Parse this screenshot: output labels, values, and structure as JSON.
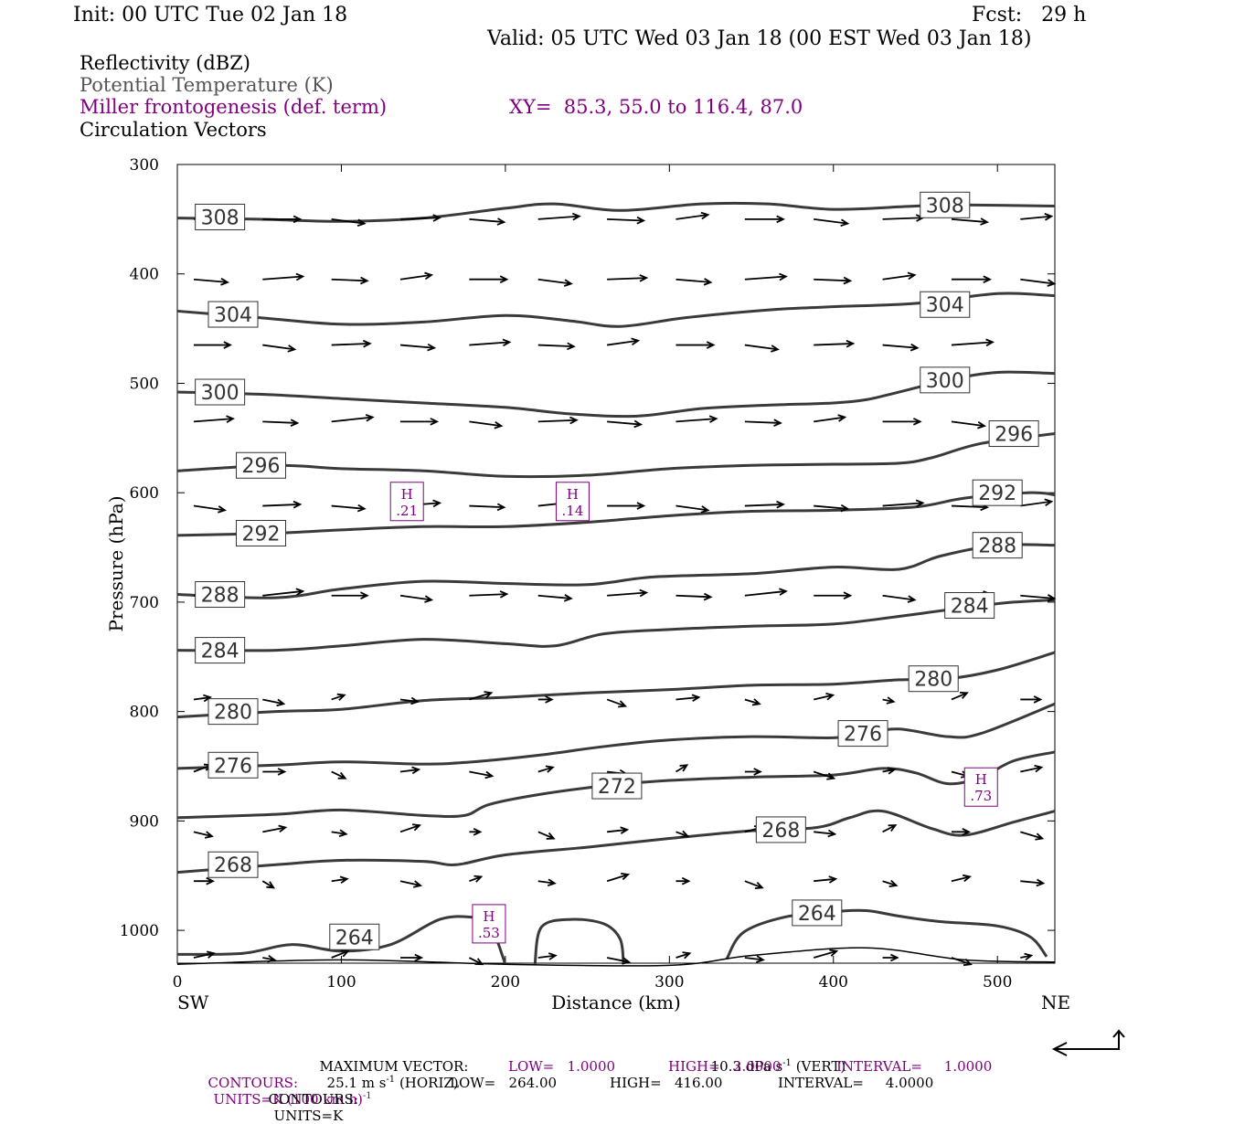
{
  "header": {
    "init": "Init: 00 UTC Tue 02 Jan 18",
    "fcst": "Fcst:   29 h",
    "valid": "Valid: 05 UTC Wed 03 Jan 18 (00 EST Wed 03 Jan 18)"
  },
  "legend": {
    "reflectivity": "Reflectivity (dBZ)",
    "theta": "Potential Temperature (K)",
    "miller": "Miller frontogenesis (def. term)",
    "xy": "XY=  85.3, 55.0 to 116.4, 87.0",
    "vectors": "Circulation Vectors"
  },
  "colors": {
    "theta": "#3a3a3a",
    "fronto": "#800080",
    "vectors": "#000000"
  },
  "chart_data": {
    "type": "line",
    "xlabel": "Distance (km)",
    "ylabel": "Pressure (hPa)",
    "xlim": [
      0,
      535
    ],
    "ylim": [
      300,
      1030
    ],
    "y_inverted": true,
    "x_ticks": [
      0,
      100,
      200,
      300,
      400,
      500
    ],
    "y_ticks": [
      300,
      400,
      500,
      600,
      700,
      800,
      900,
      1000
    ],
    "x_end_labels": {
      "left": "SW",
      "right": "NE"
    },
    "theta_contours": [
      {
        "name": "308",
        "points": [
          [
            0,
            349
          ],
          [
            50,
            350
          ],
          [
            100,
            352
          ],
          [
            150,
            349
          ],
          [
            200,
            340
          ],
          [
            230,
            336
          ],
          [
            270,
            342
          ],
          [
            320,
            336
          ],
          [
            360,
            336
          ],
          [
            400,
            341
          ],
          [
            450,
            338
          ],
          [
            480,
            337
          ],
          [
            535,
            338
          ]
        ],
        "labels": [
          [
            26,
            348
          ],
          [
            468,
            337
          ]
        ]
      },
      {
        "name": "304",
        "points": [
          [
            0,
            434
          ],
          [
            50,
            440
          ],
          [
            100,
            446
          ],
          [
            150,
            444
          ],
          [
            200,
            438
          ],
          [
            240,
            443
          ],
          [
            270,
            448
          ],
          [
            310,
            440
          ],
          [
            360,
            433
          ],
          [
            400,
            430
          ],
          [
            450,
            427
          ],
          [
            500,
            418
          ],
          [
            535,
            420
          ]
        ],
        "labels": [
          [
            34,
            437
          ],
          [
            468,
            428
          ]
        ]
      },
      {
        "name": "300",
        "points": [
          [
            0,
            508
          ],
          [
            50,
            510
          ],
          [
            100,
            514
          ],
          [
            150,
            518
          ],
          [
            200,
            522
          ],
          [
            240,
            528
          ],
          [
            280,
            530
          ],
          [
            320,
            523
          ],
          [
            360,
            520
          ],
          [
            400,
            518
          ],
          [
            420,
            515
          ],
          [
            440,
            508
          ],
          [
            470,
            497
          ],
          [
            500,
            490
          ],
          [
            535,
            491
          ]
        ],
        "labels": [
          [
            26,
            508
          ],
          [
            468,
            497
          ]
        ]
      },
      {
        "name": "296",
        "points": [
          [
            0,
            580
          ],
          [
            60,
            575
          ],
          [
            100,
            578
          ],
          [
            150,
            580
          ],
          [
            200,
            585
          ],
          [
            250,
            584
          ],
          [
            300,
            578
          ],
          [
            350,
            575
          ],
          [
            400,
            574
          ],
          [
            440,
            573
          ],
          [
            460,
            568
          ],
          [
            490,
            555
          ],
          [
            535,
            546
          ]
        ],
        "labels": [
          [
            51,
            575
          ],
          [
            510,
            546
          ]
        ]
      },
      {
        "name": "292",
        "points": [
          [
            0,
            639
          ],
          [
            60,
            637
          ],
          [
            100,
            634
          ],
          [
            150,
            631
          ],
          [
            200,
            631
          ],
          [
            250,
            627
          ],
          [
            300,
            621
          ],
          [
            350,
            617
          ],
          [
            400,
            616
          ],
          [
            450,
            613
          ],
          [
            480,
            605
          ],
          [
            520,
            600
          ],
          [
            535,
            602
          ]
        ],
        "labels": [
          [
            51,
            637
          ],
          [
            500,
            600
          ]
        ]
      },
      {
        "name": "288",
        "points": [
          [
            0,
            693
          ],
          [
            60,
            696
          ],
          [
            100,
            688
          ],
          [
            150,
            681
          ],
          [
            200,
            683
          ],
          [
            250,
            684
          ],
          [
            290,
            677
          ],
          [
            350,
            674
          ],
          [
            400,
            668
          ],
          [
            440,
            670
          ],
          [
            465,
            658
          ],
          [
            500,
            648
          ],
          [
            535,
            648
          ]
        ],
        "labels": [
          [
            26,
            693
          ],
          [
            500,
            648
          ]
        ]
      },
      {
        "name": "284",
        "points": [
          [
            0,
            744
          ],
          [
            60,
            744
          ],
          [
            100,
            740
          ],
          [
            150,
            734
          ],
          [
            200,
            738
          ],
          [
            230,
            740
          ],
          [
            260,
            729
          ],
          [
            300,
            725
          ],
          [
            350,
            722
          ],
          [
            400,
            720
          ],
          [
            440,
            713
          ],
          [
            480,
            705
          ],
          [
            510,
            700
          ],
          [
            535,
            698
          ]
        ],
        "labels": [
          [
            26,
            744
          ],
          [
            483,
            703
          ]
        ]
      },
      {
        "name": "280",
        "points": [
          [
            0,
            805
          ],
          [
            60,
            800
          ],
          [
            100,
            798
          ],
          [
            150,
            790
          ],
          [
            200,
            787
          ],
          [
            250,
            783
          ],
          [
            300,
            780
          ],
          [
            350,
            776
          ],
          [
            400,
            775
          ],
          [
            440,
            771
          ],
          [
            470,
            770
          ],
          [
            500,
            762
          ],
          [
            535,
            746
          ]
        ],
        "labels": [
          [
            34,
            800
          ],
          [
            461,
            770
          ]
        ]
      },
      {
        "name": "276",
        "points": [
          [
            0,
            852
          ],
          [
            60,
            849
          ],
          [
            100,
            846
          ],
          [
            150,
            848
          ],
          [
            180,
            846
          ],
          [
            220,
            840
          ],
          [
            260,
            832
          ],
          [
            300,
            826
          ],
          [
            350,
            823
          ],
          [
            400,
            824
          ],
          [
            420,
            820
          ],
          [
            440,
            816
          ],
          [
            470,
            823
          ],
          [
            490,
            820
          ],
          [
            535,
            793
          ]
        ],
        "labels": [
          [
            34,
            849
          ],
          [
            418,
            820
          ]
        ]
      },
      {
        "name": "272",
        "points": [
          [
            0,
            897
          ],
          [
            60,
            894
          ],
          [
            100,
            890
          ],
          [
            150,
            895
          ],
          [
            175,
            895
          ],
          [
            190,
            885
          ],
          [
            220,
            876
          ],
          [
            260,
            868
          ],
          [
            300,
            863
          ],
          [
            350,
            860
          ],
          [
            400,
            858
          ],
          [
            430,
            852
          ],
          [
            450,
            856
          ],
          [
            470,
            866
          ],
          [
            490,
            860
          ],
          [
            510,
            845
          ],
          [
            535,
            837
          ]
        ],
        "labels": [
          [
            268,
            868
          ]
        ]
      },
      {
        "name": "268",
        "points": [
          [
            0,
            947
          ],
          [
            60,
            940
          ],
          [
            100,
            936
          ],
          [
            150,
            937
          ],
          [
            170,
            940
          ],
          [
            200,
            931
          ],
          [
            250,
            924
          ],
          [
            300,
            916
          ],
          [
            350,
            909
          ],
          [
            390,
            906
          ],
          [
            410,
            897
          ],
          [
            430,
            891
          ],
          [
            460,
            907
          ],
          [
            480,
            913
          ],
          [
            510,
            901
          ],
          [
            535,
            891
          ]
        ],
        "labels": [
          [
            34,
            940
          ],
          [
            368,
            908
          ]
        ]
      },
      {
        "name": "264",
        "points": [
          [
            0,
            1022
          ],
          [
            40,
            1021
          ],
          [
            70,
            1013
          ],
          [
            100,
            1019
          ],
          [
            130,
            1013
          ],
          [
            160,
            990
          ],
          [
            180,
            988
          ],
          [
            190,
            992
          ],
          [
            200,
            1031
          ]
        ],
        "labels": [
          [
            108,
            1006
          ],
          [
            390,
            984
          ]
        ]
      },
      {
        "name": "264b",
        "points": [
          [
            218,
            1031
          ],
          [
            222,
            997
          ],
          [
            240,
            990
          ],
          [
            260,
            994
          ],
          [
            270,
            1008
          ],
          [
            272,
            1031
          ]
        ],
        "labels": []
      },
      {
        "name": "264c",
        "points": [
          [
            335,
            1026
          ],
          [
            345,
            1002
          ],
          [
            370,
            988
          ],
          [
            400,
            983
          ],
          [
            420,
            982
          ],
          [
            440,
            987
          ],
          [
            465,
            992
          ],
          [
            500,
            996
          ],
          [
            520,
            1006
          ],
          [
            530,
            1024
          ]
        ],
        "labels": []
      },
      {
        "name": "ground",
        "points": [
          [
            0,
            1031
          ],
          [
            100,
            1027
          ],
          [
            200,
            1031
          ],
          [
            300,
            1032
          ],
          [
            350,
            1023
          ],
          [
            420,
            1016
          ],
          [
            480,
            1027
          ],
          [
            535,
            1029
          ]
        ],
        "labels": []
      }
    ],
    "fronto_maxima": [
      {
        "label": "H",
        "value": ".21",
        "x": 140,
        "p": 608
      },
      {
        "label": "H",
        "value": ".14",
        "x": 241,
        "p": 608
      },
      {
        "label": "H",
        "value": ".73",
        "x": 490,
        "p": 869
      },
      {
        "label": "H",
        "value": ".53",
        "x": 190,
        "p": 994
      }
    ],
    "vector_levels_hpa": [
      350,
      405,
      465,
      535,
      612,
      694,
      789,
      855,
      910,
      955,
      1025
    ],
    "vector_columns_km": [
      10,
      52,
      94,
      136,
      178,
      220,
      262,
      304,
      346,
      388,
      430,
      472,
      514
    ]
  },
  "footer": {
    "max_vector_label": "MAXIMUM VECTOR:",
    "max_vector_horiz": "25.1 m s",
    "horiz_suffix": "(HORIZ)",
    "max_vector_vert": "10.3 dPa s",
    "vert_suffix": "(VERT)",
    "exp": "-1",
    "contours_label": "CONTOURS:",
    "fronto_units": "UNITS=K (100 km h)",
    "fronto_low": "LOW=   1.0000",
    "fronto_high": "HIGH=   2.0000",
    "fronto_interval": "INTERVAL=     1.0000",
    "theta_units": "UNITS=K",
    "theta_low": "LOW=   264.00",
    "theta_high": "HIGH=   416.00",
    "theta_interval": "INTERVAL=     4.0000"
  }
}
